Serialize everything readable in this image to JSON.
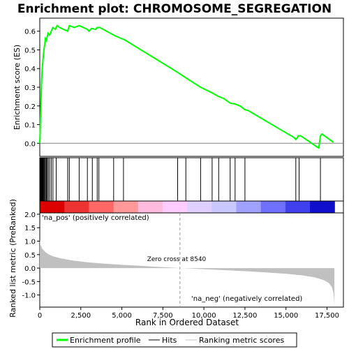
{
  "chart_data": {
    "type": "line",
    "title": "Enrichment plot: CHROMOSOME_SEGREGATION",
    "top_panel": {
      "ylabel": "Enrichment score (ES)",
      "ylim": [
        -0.07,
        0.67
      ],
      "yticks": [
        "0.0",
        "0.1",
        "0.2",
        "0.3",
        "0.4",
        "0.5",
        "0.6"
      ],
      "ytick_values": [
        0.0,
        0.1,
        0.2,
        0.3,
        0.4,
        0.5,
        0.6
      ],
      "series": [
        {
          "name": "Enrichment profile",
          "color": "#00ff00",
          "points": [
            [
              0,
              0.0
            ],
            [
              20,
              0.06
            ],
            [
              40,
              0.13
            ],
            [
              60,
              0.19
            ],
            [
              80,
              0.25
            ],
            [
              100,
              0.31
            ],
            [
              120,
              0.35
            ],
            [
              150,
              0.4
            ],
            [
              200,
              0.45
            ],
            [
              250,
              0.5
            ],
            [
              300,
              0.53
            ],
            [
              340,
              0.56
            ],
            [
              400,
              0.55
            ],
            [
              450,
              0.57
            ],
            [
              500,
              0.59
            ],
            [
              600,
              0.58
            ],
            [
              700,
              0.6
            ],
            [
              800,
              0.62
            ],
            [
              950,
              0.61
            ],
            [
              1050,
              0.63
            ],
            [
              1200,
              0.62
            ],
            [
              1700,
              0.6
            ],
            [
              1800,
              0.63
            ],
            [
              2100,
              0.62
            ],
            [
              2400,
              0.63
            ],
            [
              2900,
              0.61
            ],
            [
              3000,
              0.6
            ],
            [
              3150,
              0.615
            ],
            [
              3400,
              0.61
            ],
            [
              3500,
              0.62
            ],
            [
              3650,
              0.62
            ],
            [
              4500,
              0.58
            ],
            [
              4600,
              0.575
            ],
            [
              5000,
              0.56
            ],
            [
              5150,
              0.555
            ],
            [
              8400,
              0.38
            ],
            [
              8900,
              0.35
            ],
            [
              9800,
              0.3
            ],
            [
              10500,
              0.27
            ],
            [
              10900,
              0.25
            ],
            [
              11200,
              0.24
            ],
            [
              11600,
              0.215
            ],
            [
              11900,
              0.21
            ],
            [
              12200,
              0.2
            ],
            [
              12500,
              0.18
            ],
            [
              12700,
              0.175
            ],
            [
              15500,
              0.03
            ],
            [
              15600,
              0.02
            ],
            [
              15700,
              0.03
            ],
            [
              15750,
              0.04
            ],
            [
              15900,
              0.04
            ],
            [
              16900,
              -0.02
            ],
            [
              17000,
              -0.025
            ],
            [
              17100,
              0.04
            ],
            [
              17200,
              0.05
            ],
            [
              17500,
              0.03
            ],
            [
              17900,
              0.005
            ]
          ]
        }
      ]
    },
    "hits": [
      30,
      60,
      90,
      110,
      140,
      170,
      200,
      230,
      260,
      310,
      340,
      400,
      450,
      520,
      600,
      700,
      800,
      1000,
      1700,
      1800,
      2400,
      2900,
      3200,
      3500,
      3600,
      4500,
      5100,
      8400,
      8900,
      9800,
      10500,
      10900,
      11600,
      11900,
      12500,
      15600,
      15800,
      17100
    ],
    "bottom_panel": {
      "ylabel": "Ranked list metric (PreRanked)",
      "xlabel": "Rank in Ordered Dataset",
      "ylim": [
        -1.45,
        2.05
      ],
      "yticks": [
        "-1.0",
        "-0.5",
        "0.0",
        "0.5",
        "1.0",
        "1.5",
        "2.0"
      ],
      "ytick_values": [
        -1.0,
        -0.5,
        0.0,
        0.5,
        1.0,
        1.5,
        2.0
      ],
      "metric_color": "#c0c0c0",
      "metric_curve": [
        [
          0,
          1.05
        ],
        [
          50,
          0.85
        ],
        [
          150,
          0.72
        ],
        [
          300,
          0.62
        ],
        [
          500,
          0.52
        ],
        [
          800,
          0.44
        ],
        [
          1200,
          0.37
        ],
        [
          2000,
          0.28
        ],
        [
          3000,
          0.21
        ],
        [
          4000,
          0.16
        ],
        [
          5000,
          0.12
        ],
        [
          6000,
          0.09
        ],
        [
          7000,
          0.05
        ],
        [
          8000,
          0.02
        ],
        [
          8540,
          0.0
        ],
        [
          9000,
          -0.01
        ],
        [
          10000,
          -0.04
        ],
        [
          11000,
          -0.07
        ],
        [
          12000,
          -0.1
        ],
        [
          13000,
          -0.13
        ],
        [
          14000,
          -0.17
        ],
        [
          15000,
          -0.21
        ],
        [
          16000,
          -0.27
        ],
        [
          16800,
          -0.35
        ],
        [
          17300,
          -0.45
        ],
        [
          17600,
          -0.55
        ],
        [
          17800,
          -0.7
        ],
        [
          17900,
          -0.95
        ],
        [
          17950,
          -1.35
        ]
      ],
      "zero_cross_label": "Zero cross at 8540",
      "zero_cross": 8540,
      "pos_label": "'na_pos' (positively correlated)",
      "neg_label": "'na_neg' (negatively correlated)",
      "pos_label_color": "#cc0000",
      "neg_label_color": "#0000cc"
    },
    "xlim": [
      0,
      18500
    ],
    "xticks": [
      "0",
      "2,500",
      "5,000",
      "7,500",
      "10,000",
      "12,500",
      "15,000",
      "17,500"
    ],
    "xtick_values": [
      0,
      2500,
      5000,
      7500,
      10000,
      12500,
      15000,
      17500
    ],
    "dataset_size": 17960,
    "color_bar_stops": [
      "#dd0000",
      "#ee3333",
      "#ff6666",
      "#ff9999",
      "#ffbbdd",
      "#ffccff",
      "#e0d0ff",
      "#c8c8ff",
      "#a0a0ff",
      "#7070ff",
      "#4040ee",
      "#1010cc"
    ],
    "legend": {
      "position": "bottom",
      "entries": [
        {
          "label": "Enrichment profile",
          "color": "#00ff00"
        },
        {
          "label": "Hits",
          "color": "#000000"
        },
        {
          "label": "Ranking metric scores",
          "color": "#c0c0c0"
        }
      ]
    }
  }
}
